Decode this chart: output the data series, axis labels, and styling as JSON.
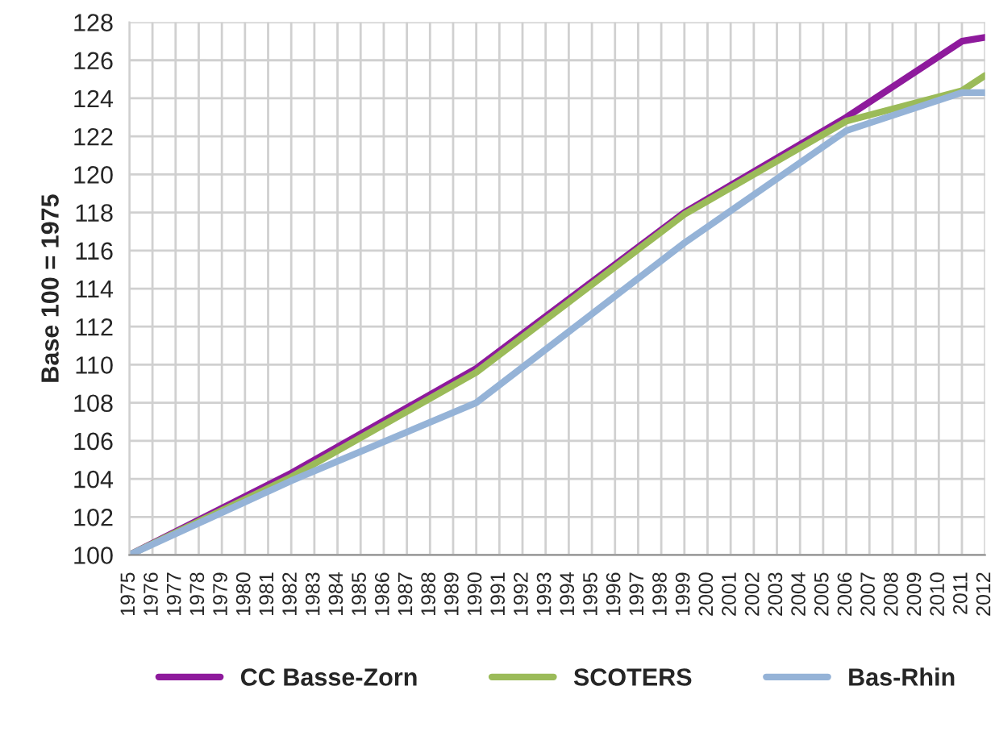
{
  "chart_data": {
    "type": "line",
    "ylabel": "Base 100 = 1975",
    "x": [
      1975,
      1982,
      1990,
      1999,
      2006,
      2011,
      2012
    ],
    "xlim": [
      1975,
      2012
    ],
    "xticks": [
      1975,
      1976,
      1977,
      1978,
      1979,
      1980,
      1981,
      1982,
      1983,
      1984,
      1985,
      1986,
      1987,
      1988,
      1989,
      1990,
      1991,
      1992,
      1993,
      1994,
      1995,
      1996,
      1997,
      1998,
      1999,
      2000,
      2001,
      2002,
      2003,
      2004,
      2005,
      2006,
      2007,
      2008,
      2009,
      2010,
      2011,
      2012
    ],
    "ylim": [
      100,
      128
    ],
    "yticks": [
      100,
      102,
      104,
      106,
      108,
      110,
      112,
      114,
      116,
      118,
      120,
      122,
      124,
      126,
      128
    ],
    "grid": true,
    "legend": "bottom",
    "marker": "none",
    "line_style": "solid",
    "series": [
      {
        "name": "CC Basse-Zorn",
        "color": "#8e1a9c",
        "values": [
          100,
          104.3,
          109.8,
          118.0,
          123.0,
          127.0,
          127.2
        ]
      },
      {
        "name": "SCOTERS",
        "color": "#9bbb59",
        "values": [
          100,
          104.1,
          109.6,
          117.9,
          122.8,
          124.4,
          125.2
        ]
      },
      {
        "name": "Bas-Rhin",
        "color": "#95b3d7",
        "values": [
          100,
          103.9,
          108.0,
          116.4,
          122.3,
          124.3,
          124.3
        ]
      }
    ]
  }
}
